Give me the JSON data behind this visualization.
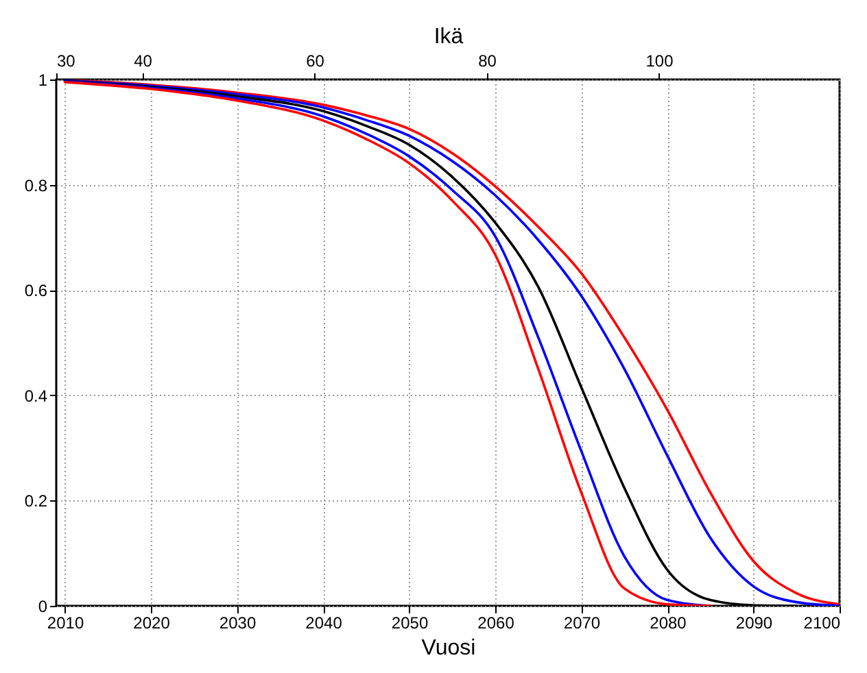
{
  "chart_data": {
    "type": "line",
    "xlabel": "Vuosi",
    "x2label": "Ikä",
    "x": [
      2010,
      2020,
      2030,
      2040,
      2045,
      2050,
      2055,
      2060,
      2065,
      2070,
      2075,
      2080,
      2085,
      2090,
      2095,
      2100
    ],
    "series": [
      {
        "color": "#ff0000",
        "values": [
          0.999,
          0.99,
          0.975,
          0.952,
          0.932,
          0.906,
          0.86,
          0.797,
          0.72,
          0.632,
          0.51,
          0.372,
          0.215,
          0.085,
          0.024,
          0.003
        ]
      },
      {
        "color": "#0000ff",
        "values": [
          0.998,
          0.988,
          0.972,
          0.947,
          0.923,
          0.893,
          0.845,
          0.78,
          0.695,
          0.589,
          0.45,
          0.285,
          0.129,
          0.037,
          0.007,
          0
        ]
      },
      {
        "color": "#000000",
        "values": [
          0.997,
          0.986,
          0.968,
          0.94,
          0.912,
          0.876,
          0.815,
          0.728,
          0.606,
          0.415,
          0.224,
          0.068,
          0.011,
          0.001,
          0,
          null
        ]
      },
      {
        "color": "#0000ff",
        "values": [
          0.996,
          0.984,
          0.964,
          0.93,
          0.897,
          0.854,
          0.79,
          0.702,
          0.51,
          0.294,
          0.094,
          0.011,
          0,
          null,
          null,
          null
        ]
      },
      {
        "color": "#ff0000",
        "values": [
          0.995,
          0.982,
          0.96,
          0.922,
          0.887,
          0.841,
          0.77,
          0.667,
          0.45,
          0.215,
          0.033,
          0.003,
          0,
          null,
          null,
          null
        ]
      }
    ],
    "xlim": [
      2009,
      2100
    ],
    "xticks": [
      2010,
      2020,
      2030,
      2040,
      2050,
      2060,
      2070,
      2080,
      2090,
      2100
    ],
    "x2lim": [
      30,
      121
    ],
    "x2ticks": [
      30,
      40,
      60,
      80,
      100
    ],
    "ylim": [
      0,
      1
    ],
    "yticks": [
      0,
      0.2,
      0.4,
      0.6,
      0.8,
      1
    ],
    "grid": true,
    "marker": "none",
    "line_style": "solid"
  }
}
